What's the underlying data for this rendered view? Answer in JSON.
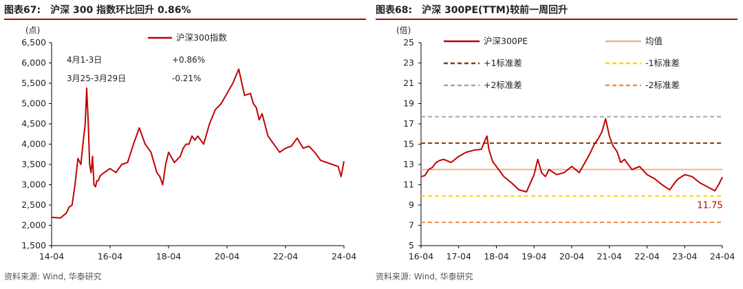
{
  "left": {
    "fig_label": "图表67:",
    "title": "沪深 300 指数环比回升 0.86%",
    "source": "资料来源: Wind, 华泰研究",
    "chart_data": {
      "type": "line",
      "ylabel": "(点)",
      "ylim": [
        1500,
        6500
      ],
      "yticks": [
        1500,
        2000,
        2500,
        3000,
        3500,
        4000,
        4500,
        5000,
        5500,
        6000,
        6500
      ],
      "ytick_labels": [
        "1,500",
        "2,000",
        "2,500",
        "3,000",
        "3,500",
        "4,000",
        "4,500",
        "5,000",
        "5,500",
        "6,000",
        "6,500"
      ],
      "xticks": [
        "14-04",
        "16-04",
        "18-04",
        "20-04",
        "22-04",
        "24-04"
      ],
      "x_range": [
        "2014-04",
        "2024-04"
      ],
      "legend": "top-center",
      "series": [
        {
          "name": "沪深300指数",
          "color": "#c00000",
          "x": [
            0.0,
            0.3,
            0.5,
            0.6,
            0.7,
            0.8,
            0.9,
            1.0,
            1.1,
            1.15,
            1.2,
            1.25,
            1.3,
            1.35,
            1.4,
            1.45,
            1.5,
            1.55,
            1.6,
            1.65,
            1.7,
            1.8,
            2.0,
            2.2,
            2.4,
            2.6,
            2.8,
            3.0,
            3.2,
            3.4,
            3.6,
            3.7,
            3.8,
            3.9,
            4.0,
            4.2,
            4.4,
            4.5,
            4.6,
            4.7,
            4.8,
            4.9,
            5.0,
            5.2,
            5.4,
            5.6,
            5.8,
            6.0,
            6.2,
            6.4,
            6.6,
            6.8,
            6.9,
            7.0,
            7.1,
            7.2,
            7.4,
            7.6,
            7.8,
            8.0,
            8.2,
            8.4,
            8.6,
            8.8,
            9.0,
            9.2,
            9.4,
            9.6,
            9.8,
            9.9,
            10.0
          ],
          "y": [
            2200,
            2180,
            2300,
            2450,
            2500,
            3000,
            3650,
            3500,
            4200,
            4500,
            5380,
            4600,
            3500,
            3300,
            3700,
            3000,
            2950,
            3100,
            3100,
            3200,
            3250,
            3300,
            3400,
            3300,
            3500,
            3550,
            4000,
            4400,
            4000,
            3800,
            3300,
            3200,
            3000,
            3500,
            3800,
            3550,
            3700,
            3900,
            4000,
            4000,
            4200,
            4100,
            4200,
            4000,
            4500,
            4850,
            5000,
            5250,
            5500,
            5850,
            5200,
            5250,
            5000,
            4900,
            4600,
            4750,
            4200,
            4000,
            3800,
            3900,
            3950,
            4150,
            3900,
            3950,
            3800,
            3600,
            3550,
            3500,
            3450,
            3200,
            3580
          ]
        }
      ],
      "annotations": [
        {
          "period": "4月1-3日",
          "change": "+0.86%"
        },
        {
          "period": "3月25-3月29日",
          "change": "-0.21%"
        }
      ]
    }
  },
  "right": {
    "fig_label": "图表68:",
    "title": "沪深 300PE(TTM)较前一周回升",
    "source": "资料来源: Wind, 华泰研究",
    "chart_data": {
      "type": "line",
      "ylabel": "(倍)",
      "ylim": [
        5,
        25
      ],
      "yticks": [
        5,
        7,
        9,
        11,
        13,
        15,
        17,
        19,
        21,
        23,
        25
      ],
      "xticks": [
        "16-04",
        "17-04",
        "18-04",
        "19-04",
        "20-04",
        "21-04",
        "22-04",
        "23-04",
        "24-04"
      ],
      "x_range": [
        "2016-04",
        "2024-04"
      ],
      "legend": "top",
      "series": [
        {
          "name": "沪深300PE",
          "color": "#c00000",
          "style": "solid",
          "x": [
            0.0,
            0.1,
            0.2,
            0.3,
            0.4,
            0.5,
            0.6,
            0.8,
            1.0,
            1.2,
            1.4,
            1.6,
            1.75,
            1.8,
            1.9,
            2.0,
            2.1,
            2.2,
            2.4,
            2.6,
            2.8,
            3.0,
            3.1,
            3.2,
            3.3,
            3.4,
            3.6,
            3.8,
            4.0,
            4.2,
            4.4,
            4.5,
            4.6,
            4.7,
            4.8,
            4.9,
            5.0,
            5.1,
            5.2,
            5.3,
            5.4,
            5.6,
            5.8,
            6.0,
            6.2,
            6.4,
            6.6,
            6.8,
            7.0,
            7.2,
            7.4,
            7.6,
            7.8,
            7.9,
            8.0
          ],
          "y": [
            11.8,
            11.9,
            12.5,
            12.7,
            13.2,
            13.4,
            13.5,
            13.2,
            13.8,
            14.2,
            14.4,
            14.5,
            15.8,
            14.5,
            13.3,
            12.8,
            12.3,
            11.8,
            11.2,
            10.5,
            10.3,
            12.0,
            13.5,
            12.2,
            11.8,
            12.5,
            12.0,
            12.2,
            12.8,
            12.2,
            13.5,
            14.2,
            15.0,
            15.5,
            16.2,
            17.5,
            15.8,
            14.8,
            14.3,
            13.2,
            13.5,
            12.5,
            12.8,
            12.0,
            11.6,
            11.0,
            10.5,
            11.5,
            12.0,
            11.8,
            11.2,
            10.8,
            10.4,
            11.0,
            11.75
          ]
        },
        {
          "name": "均值",
          "color": "#f4b183",
          "style": "solid",
          "value": 12.5
        },
        {
          "name": "+1标准差",
          "color": "#843c0c",
          "style": "dashed",
          "value": 15.1
        },
        {
          "name": "-1标准差",
          "color": "#ffd000",
          "style": "dashed",
          "value": 9.9
        },
        {
          "name": "+2标准差",
          "color": "#a6a6a6",
          "style": "dashed",
          "value": 17.7
        },
        {
          "name": "-2标准差",
          "color": "#f08a45",
          "style": "dashed",
          "value": 7.3
        }
      ],
      "end_label": "11.75"
    }
  }
}
